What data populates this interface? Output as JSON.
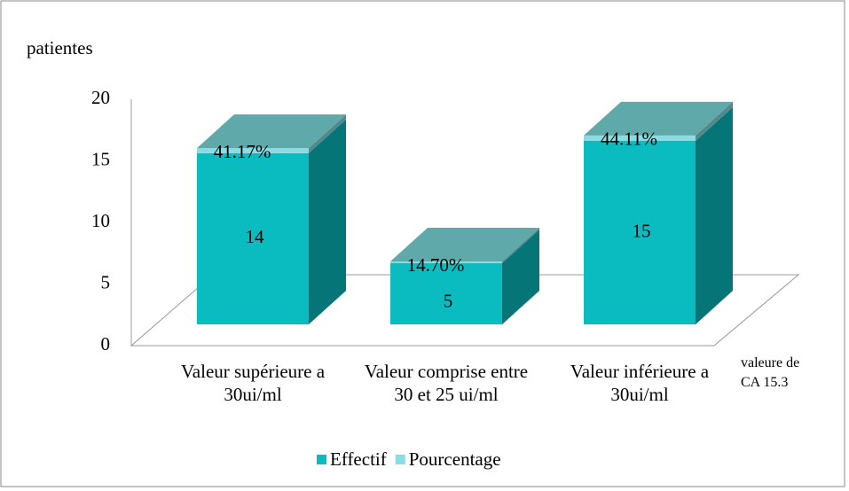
{
  "chart_data": {
    "type": "bar3d_stacked",
    "y_axis_label": "patientes",
    "x_axis_label": "valeure de CA 15.3",
    "categories": [
      "Valeur supérieure a 30ui/ml",
      "Valeur comprise entre 30 et 25 ui/ml",
      "Valeur inférieure a 30ui/ml"
    ],
    "series": [
      {
        "name": "Effectif",
        "color": "#0abcc0",
        "values": [
          14,
          5,
          15
        ]
      },
      {
        "name": "Pourcentage",
        "color": "#88dde2",
        "values": [
          0.4117,
          0.147,
          0.4411
        ],
        "value_labels": [
          "41.17%",
          "14.70%",
          "44.11%"
        ]
      }
    ],
    "ylim": [
      0,
      20
    ],
    "yticks": [
      0,
      5,
      10,
      15,
      20
    ],
    "legend": "bottom"
  }
}
